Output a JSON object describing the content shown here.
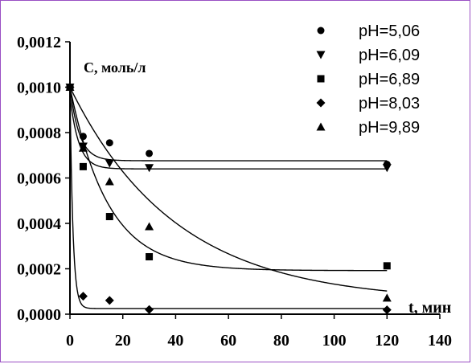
{
  "chart_data": {
    "type": "scatter",
    "xlabel": "t, мин",
    "ylabel": "С, моль/л",
    "xlim": [
      0,
      140
    ],
    "ylim": [
      0,
      0.0012
    ],
    "x_ticks": [
      "0",
      "20",
      "40",
      "60",
      "80",
      "100",
      "120",
      "140"
    ],
    "y_ticks": [
      "0,0000",
      "0,0002",
      "0,0004",
      "0,0006",
      "0,0008",
      "0,0010",
      "0,0012"
    ],
    "grid": false,
    "legend_position": "top-right",
    "series": [
      {
        "name": "pH=5,06",
        "marker": "circle",
        "x": [
          0,
          5,
          15,
          30,
          120
        ],
        "y": [
          0.001,
          0.000783,
          0.000755,
          0.000708,
          0.00066
        ],
        "fit": {
          "inf": 0.000676,
          "amp": 0.000324,
          "k": 0.28
        }
      },
      {
        "name": "pH=6,09",
        "marker": "triangle-down",
        "x": [
          0,
          5,
          15,
          30,
          120
        ],
        "y": [
          0.001,
          0.00074,
          0.000665,
          0.000645,
          0.000645
        ],
        "fit": {
          "inf": 0.00064,
          "amp": 0.00032,
          "k": 0.3
        }
      },
      {
        "name": "pH=6,89",
        "marker": "square",
        "x": [
          0,
          5,
          15,
          30,
          120
        ],
        "y": [
          0.001,
          0.00065,
          0.00043,
          0.000253,
          0.000213
        ],
        "fit": {
          "inf": 0.000192,
          "amp": 0.000808,
          "k": 0.07
        }
      },
      {
        "name": "pH=8,03",
        "marker": "diamond",
        "x": [
          0,
          5,
          15,
          30,
          120
        ],
        "y": [
          0.001,
          7.94e-05,
          6.08e-05,
          2.05e-05,
          1.89e-05
        ],
        "fit": {
          "inf": 2.5e-05,
          "amp": 0.00097,
          "k": 0.9
        }
      },
      {
        "name": "pH=9,89",
        "marker": "triangle-up",
        "x": [
          0,
          5,
          15,
          30,
          120
        ],
        "y": [
          0.001,
          0.000732,
          0.000584,
          0.000386,
          7.14e-05
        ],
        "fit": {
          "inf": 5.5e-05,
          "amp": 0.000945,
          "k": 0.025
        }
      }
    ]
  }
}
